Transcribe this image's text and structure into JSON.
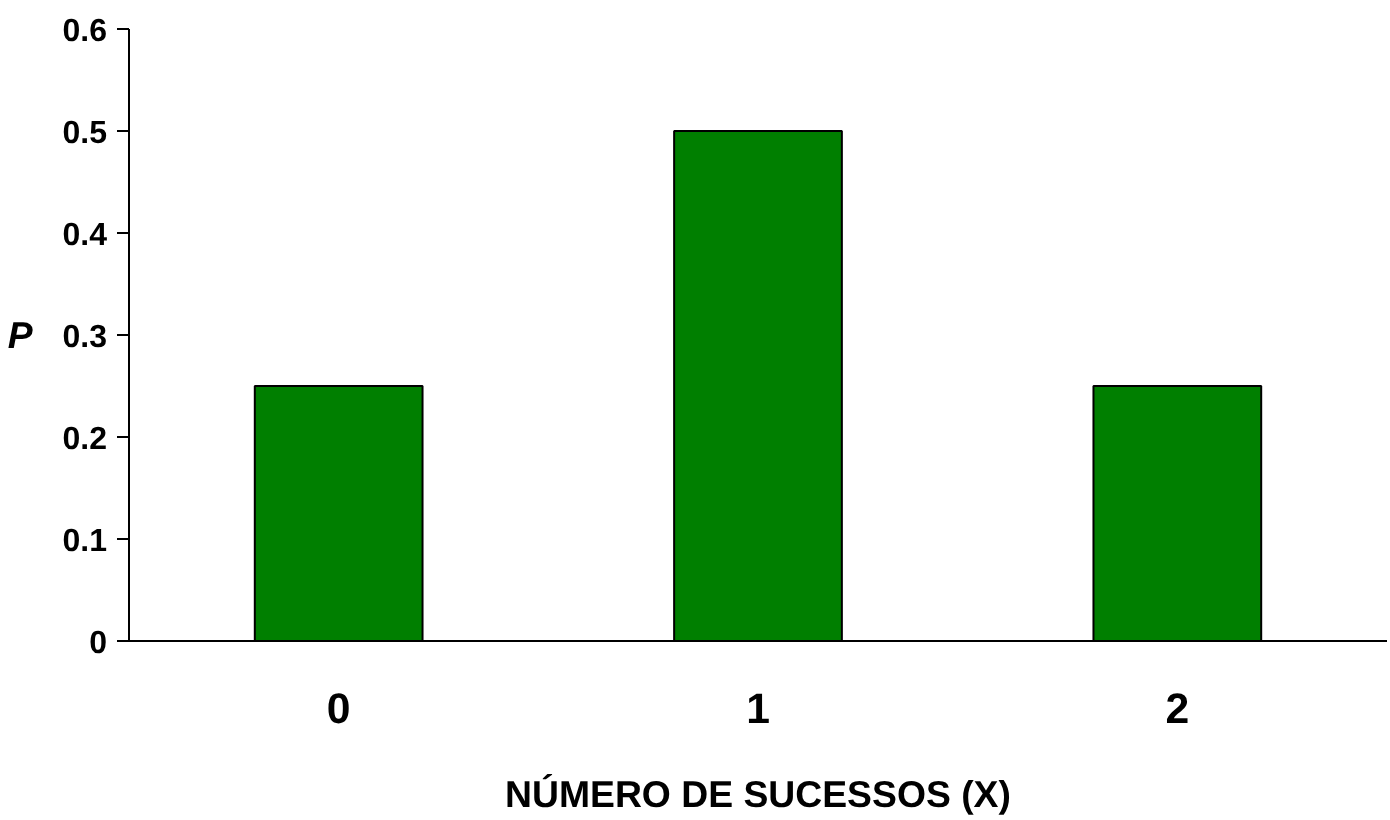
{
  "chart_data": {
    "type": "bar",
    "categories": [
      "0",
      "1",
      "2"
    ],
    "values": [
      0.25,
      0.5,
      0.25
    ],
    "color": "#007f00",
    "xlabel": "NÚMERO DE SUCESSOS (X)",
    "ylabel": "P",
    "ylim": [
      0,
      0.6
    ],
    "yticks": [
      0,
      0.1,
      0.2,
      0.3,
      0.4,
      0.5,
      0.6
    ]
  }
}
